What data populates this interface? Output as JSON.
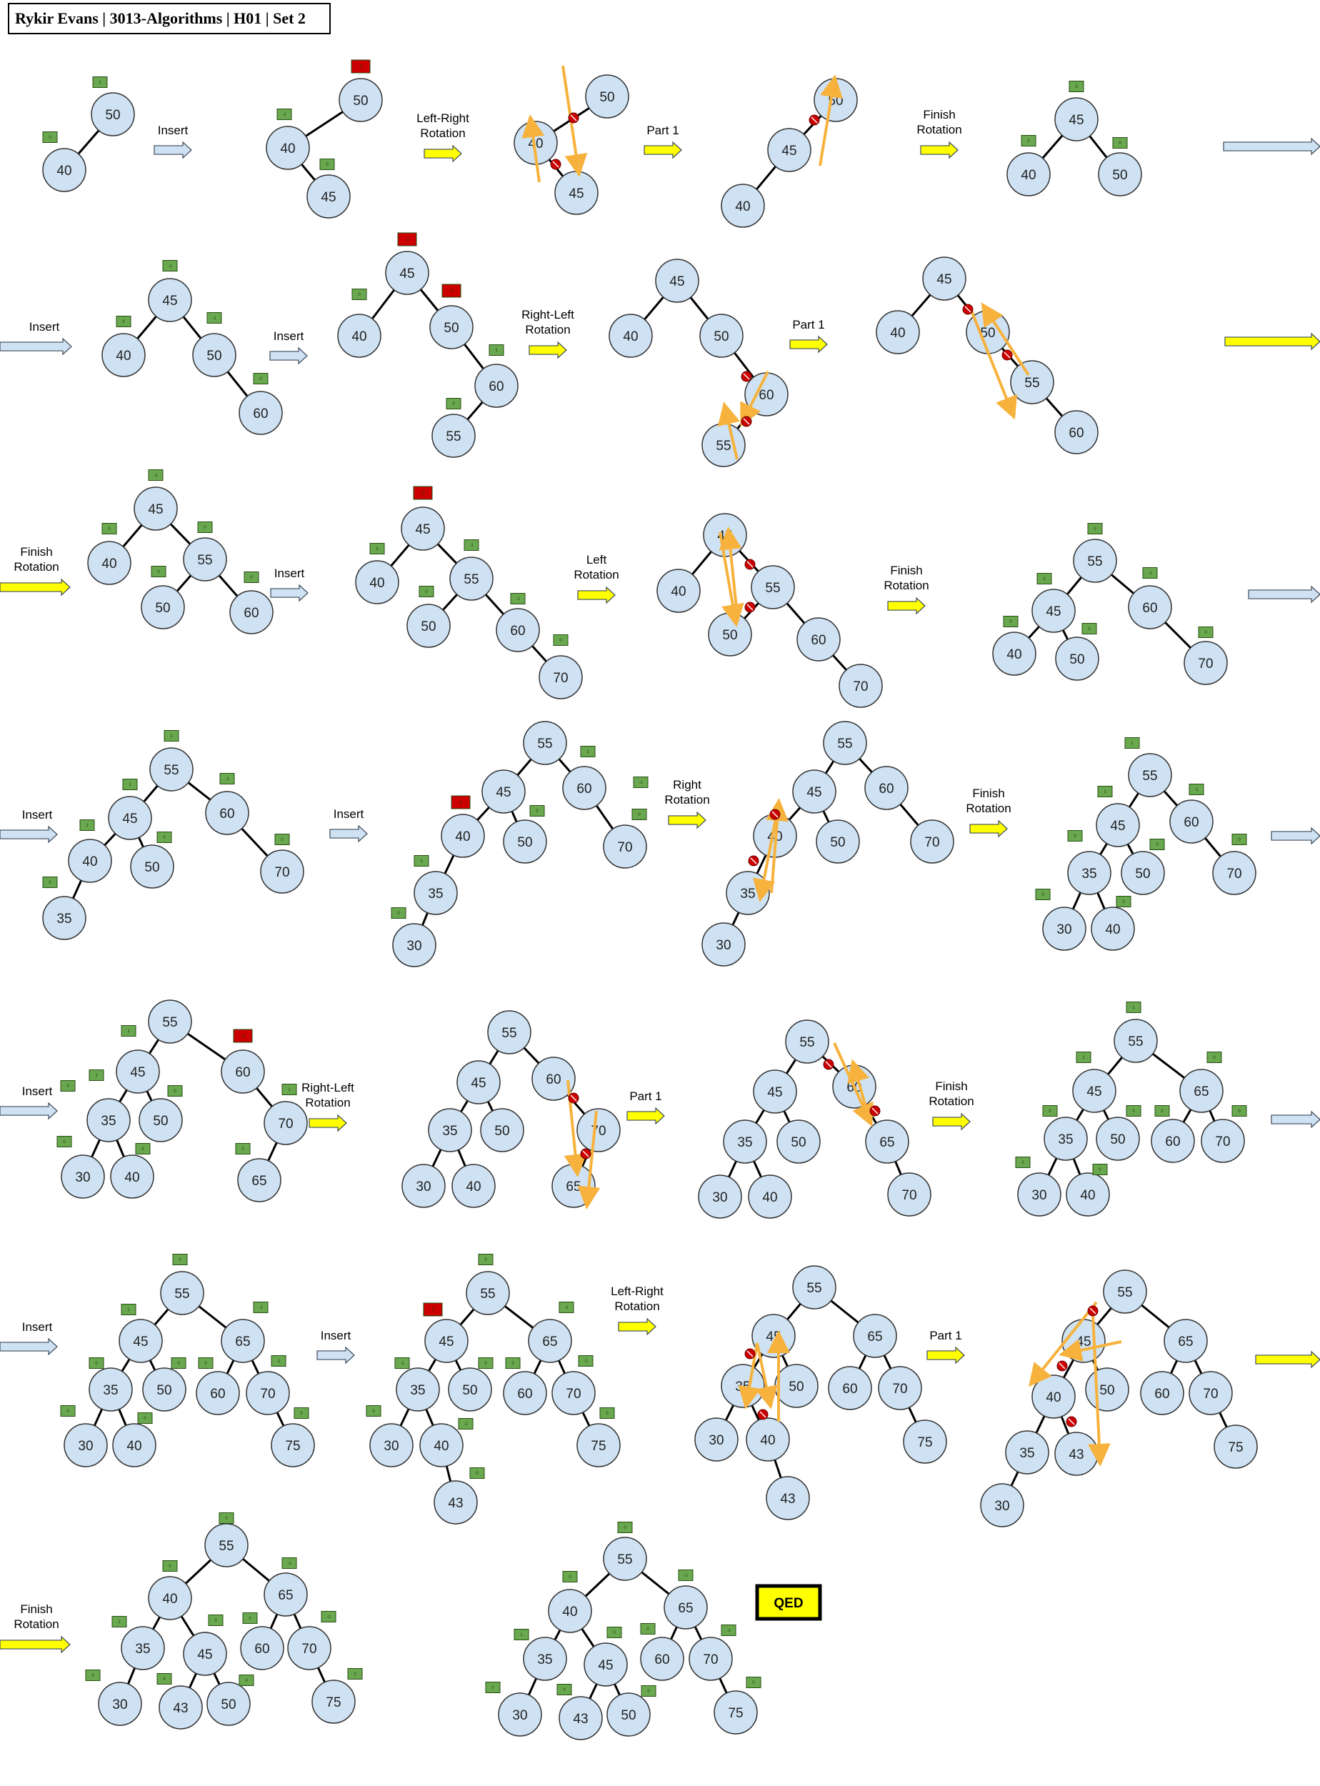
{
  "header": {
    "title": "Rykir Evans | 3013-Algorithms | H01 | Set 2"
  },
  "colors": {
    "node_fill": "#cfe2f3",
    "node_stroke": "#333333",
    "balance_ok": "#6aa84f",
    "balance_bad": "#cc0000",
    "arrow_yellow": "#ffff00",
    "arrow_blue": "#cfe2f3",
    "rotation_arrow": "#f6b23c"
  },
  "labels": {
    "insert": "Insert",
    "left_right_rotation": "Left-Right Rotation",
    "right_left_rotation": "Right-Left Rotation",
    "left_rotation": "Left Rotation",
    "right_rotation": "Right Rotation",
    "part1": "Part 1",
    "finish_rotation": "Finish Rotation",
    "qed": "QED"
  },
  "balance_values": [
    "1",
    "0",
    "-1",
    "-2",
    "2"
  ],
  "rows": [
    {
      "name": "row1",
      "trees": [
        {
          "name": "tree-50-40",
          "nodes": [
            [
              "50",
              0,
              "1"
            ],
            [
              "40",
              0,
              "0"
            ]
          ]
        },
        {
          "name": "tree-insert-45",
          "nodes": [
            [
              "50",
              0,
              "2"
            ],
            [
              "40",
              0,
              "-1"
            ],
            [
              "45",
              0,
              "0"
            ]
          ]
        },
        {
          "name": "tree-lr-rotation",
          "nodes": [
            [
              "50",
              0,
              ""
            ],
            [
              "40",
              0,
              ""
            ],
            [
              "45",
              0,
              ""
            ]
          ]
        },
        {
          "name": "tree-lr-part1",
          "nodes": [
            [
              "50",
              0,
              ""
            ],
            [
              "45",
              0,
              ""
            ],
            [
              "40",
              0,
              ""
            ]
          ]
        },
        {
          "name": "tree-lr-finished",
          "nodes": [
            [
              "45",
              0,
              "0"
            ],
            [
              "40",
              0,
              "0"
            ],
            [
              "50",
              0,
              "0"
            ]
          ]
        }
      ]
    },
    {
      "name": "row2",
      "trees": [
        {
          "name": "tree-insert-60",
          "nodes": [
            [
              "45",
              0,
              "-1"
            ],
            [
              "40",
              0,
              "0"
            ],
            [
              "50",
              0,
              "-1"
            ],
            [
              "60",
              0,
              "0"
            ]
          ]
        },
        {
          "name": "tree-insert-55",
          "nodes": [
            [
              "45",
              0,
              "-2"
            ],
            [
              "40",
              0,
              "0"
            ],
            [
              "50",
              0,
              "-2"
            ],
            [
              "60",
              0,
              "1"
            ],
            [
              "55",
              0,
              "0"
            ]
          ]
        },
        {
          "name": "tree-rl-rotation",
          "nodes": [
            [
              "45",
              0,
              ""
            ],
            [
              "40",
              0,
              ""
            ],
            [
              "50",
              0,
              ""
            ],
            [
              "60",
              0,
              ""
            ],
            [
              "55",
              0,
              ""
            ]
          ]
        },
        {
          "name": "tree-rl-part1",
          "nodes": [
            [
              "45",
              0,
              ""
            ],
            [
              "40",
              0,
              ""
            ],
            [
              "50",
              0,
              ""
            ],
            [
              "55",
              0,
              ""
            ],
            [
              "60",
              0,
              ""
            ]
          ]
        }
      ]
    },
    {
      "name": "row3",
      "trees": [
        {
          "name": "tree-rl-finished",
          "nodes": [
            [
              "45",
              0,
              "-1"
            ],
            [
              "40",
              0,
              "0"
            ],
            [
              "55",
              0,
              "0"
            ],
            [
              "50",
              0,
              "0"
            ],
            [
              "60",
              0,
              "0"
            ]
          ]
        },
        {
          "name": "tree-insert-70",
          "nodes": [
            [
              "45",
              0,
              "-2"
            ],
            [
              "40",
              0,
              "0"
            ],
            [
              "55",
              0,
              "-1"
            ],
            [
              "50",
              0,
              "0"
            ],
            [
              "60",
              0,
              "-1"
            ],
            [
              "70",
              0,
              "0"
            ]
          ]
        },
        {
          "name": "tree-left-rotation",
          "nodes": [
            [
              "45",
              0,
              ""
            ],
            [
              "40",
              0,
              ""
            ],
            [
              "55",
              0,
              ""
            ],
            [
              "50",
              0,
              ""
            ],
            [
              "60",
              0,
              ""
            ],
            [
              "70",
              0,
              ""
            ]
          ]
        },
        {
          "name": "tree-left-finished",
          "nodes": [
            [
              "55",
              0,
              "0"
            ],
            [
              "45",
              0,
              "0"
            ],
            [
              "60",
              0,
              "-1"
            ],
            [
              "40",
              0,
              "0"
            ],
            [
              "50",
              0,
              "0"
            ],
            [
              "70",
              0,
              "0"
            ]
          ]
        }
      ]
    },
    {
      "name": "row4",
      "trees": [
        {
          "name": "tree-insert-35",
          "nodes": [
            [
              "55",
              0,
              "1"
            ],
            [
              "45",
              0,
              "1"
            ],
            [
              "60",
              0,
              "-1"
            ],
            [
              "40",
              0,
              "1"
            ],
            [
              "50",
              0,
              "0"
            ],
            [
              "70",
              0,
              "0"
            ],
            [
              "35",
              0,
              "0"
            ]
          ]
        },
        {
          "name": "tree-insert-30",
          "nodes": [
            [
              "55",
              0,
              "1"
            ],
            [
              "45",
              0,
              "2"
            ],
            [
              "60",
              0,
              "-1"
            ],
            [
              "40",
              0,
              "2"
            ],
            [
              "50",
              0,
              "0"
            ],
            [
              "70",
              0,
              "0"
            ],
            [
              "35",
              0,
              "1"
            ],
            [
              "30",
              0,
              "0"
            ]
          ]
        },
        {
          "name": "tree-right-rotation",
          "nodes": [
            [
              "55",
              0,
              ""
            ],
            [
              "45",
              0,
              ""
            ],
            [
              "60",
              0,
              ""
            ],
            [
              "40",
              0,
              ""
            ],
            [
              "50",
              0,
              ""
            ],
            [
              "70",
              0,
              ""
            ],
            [
              "35",
              0,
              ""
            ],
            [
              "30",
              0,
              ""
            ]
          ]
        },
        {
          "name": "tree-right-finished",
          "nodes": [
            [
              "55",
              0,
              "1"
            ],
            [
              "45",
              0,
              "1"
            ],
            [
              "60",
              0,
              "-1"
            ],
            [
              "35",
              0,
              "0"
            ],
            [
              "50",
              0,
              "0"
            ],
            [
              "70",
              0,
              "0"
            ],
            [
              "30",
              0,
              "0"
            ],
            [
              "40",
              0,
              "0"
            ]
          ]
        }
      ]
    },
    {
      "name": "row5",
      "trees": [
        {
          "name": "tree-insert-65",
          "nodes": [
            [
              "55",
              0,
              "1"
            ],
            [
              "45",
              0,
              "1"
            ],
            [
              "60",
              0,
              "-2"
            ],
            [
              "35",
              0,
              "0"
            ],
            [
              "50",
              0,
              "0"
            ],
            [
              "70",
              0,
              "1"
            ],
            [
              "30",
              0,
              "0"
            ],
            [
              "40",
              0,
              "0"
            ],
            [
              "65",
              0,
              "0"
            ]
          ]
        },
        {
          "name": "tree-rl2-rotation",
          "nodes": [
            [
              "55",
              0,
              ""
            ],
            [
              "45",
              0,
              ""
            ],
            [
              "60",
              0,
              ""
            ],
            [
              "35",
              0,
              ""
            ],
            [
              "50",
              0,
              ""
            ],
            [
              "70",
              0,
              ""
            ],
            [
              "30",
              0,
              ""
            ],
            [
              "40",
              0,
              ""
            ],
            [
              "65",
              0,
              ""
            ]
          ]
        },
        {
          "name": "tree-rl2-part1",
          "nodes": [
            [
              "55",
              0,
              ""
            ],
            [
              "45",
              0,
              ""
            ],
            [
              "60",
              0,
              ""
            ],
            [
              "35",
              0,
              ""
            ],
            [
              "50",
              0,
              ""
            ],
            [
              "65",
              0,
              ""
            ],
            [
              "30",
              0,
              ""
            ],
            [
              "40",
              0,
              ""
            ],
            [
              "70",
              0,
              ""
            ]
          ]
        },
        {
          "name": "tree-rl2-finished",
          "nodes": [
            [
              "55",
              0,
              "1"
            ],
            [
              "45",
              0,
              "1"
            ],
            [
              "65",
              0,
              "0"
            ],
            [
              "35",
              0,
              "0"
            ],
            [
              "50",
              0,
              "0"
            ],
            [
              "60",
              0,
              "0"
            ],
            [
              "70",
              0,
              "0"
            ],
            [
              "30",
              0,
              "0"
            ],
            [
              "40",
              0,
              "0"
            ]
          ]
        }
      ]
    },
    {
      "name": "row6",
      "trees": [
        {
          "name": "tree-insert-75",
          "nodes": [
            [
              "55",
              0,
              "0"
            ],
            [
              "45",
              0,
              "1"
            ],
            [
              "65",
              0,
              "-1"
            ],
            [
              "35",
              0,
              "0"
            ],
            [
              "50",
              0,
              "0"
            ],
            [
              "60",
              0,
              "0"
            ],
            [
              "70",
              0,
              "-1"
            ],
            [
              "30",
              0,
              "0"
            ],
            [
              "40",
              0,
              "0"
            ],
            [
              "75",
              0,
              "0"
            ]
          ]
        },
        {
          "name": "tree-insert-43",
          "nodes": [
            [
              "55",
              0,
              "0"
            ],
            [
              "45",
              0,
              "2"
            ],
            [
              "65",
              0,
              "-1"
            ],
            [
              "35",
              0,
              "-1"
            ],
            [
              "50",
              0,
              "0"
            ],
            [
              "60",
              0,
              "0"
            ],
            [
              "70",
              0,
              "-1"
            ],
            [
              "30",
              0,
              "0"
            ],
            [
              "40",
              0,
              "-1"
            ],
            [
              "75",
              0,
              "0"
            ],
            [
              "43",
              0,
              "0"
            ]
          ]
        },
        {
          "name": "tree-lr2-rotation",
          "nodes": [
            [
              "55",
              0,
              ""
            ],
            [
              "45",
              0,
              ""
            ],
            [
              "65",
              0,
              ""
            ],
            [
              "35",
              0,
              ""
            ],
            [
              "50",
              0,
              ""
            ],
            [
              "60",
              0,
              ""
            ],
            [
              "70",
              0,
              ""
            ],
            [
              "30",
              0,
              ""
            ],
            [
              "40",
              0,
              ""
            ],
            [
              "75",
              0,
              ""
            ],
            [
              "43",
              0,
              ""
            ]
          ]
        },
        {
          "name": "tree-lr2-part1",
          "nodes": [
            [
              "55",
              0,
              ""
            ],
            [
              "45",
              0,
              ""
            ],
            [
              "65",
              0,
              ""
            ],
            [
              "40",
              0,
              ""
            ],
            [
              "50",
              0,
              ""
            ],
            [
              "60",
              0,
              ""
            ],
            [
              "70",
              0,
              ""
            ],
            [
              "35",
              0,
              ""
            ],
            [
              "43",
              0,
              ""
            ],
            [
              "75",
              0,
              ""
            ],
            [
              "30",
              0,
              ""
            ]
          ]
        }
      ]
    },
    {
      "name": "row7",
      "trees": [
        {
          "name": "tree-lr2-finished",
          "nodes": [
            [
              "55",
              0,
              "0"
            ],
            [
              "40",
              0,
              "0"
            ],
            [
              "65",
              0,
              "-1"
            ],
            [
              "35",
              0,
              "1"
            ],
            [
              "45",
              0,
              "0"
            ],
            [
              "60",
              0,
              "0"
            ],
            [
              "70",
              0,
              "-1"
            ],
            [
              "30",
              0,
              "0"
            ],
            [
              "43",
              0,
              "0"
            ],
            [
              "50",
              0,
              "0"
            ],
            [
              "75",
              0,
              "0"
            ]
          ]
        },
        {
          "name": "tree-final",
          "nodes": [
            [
              "55",
              0,
              "0"
            ],
            [
              "40",
              0,
              "0"
            ],
            [
              "65",
              0,
              "-1"
            ],
            [
              "35",
              0,
              "1"
            ],
            [
              "45",
              0,
              "0"
            ],
            [
              "60",
              0,
              "0"
            ],
            [
              "70",
              0,
              "-1"
            ],
            [
              "30",
              0,
              "0"
            ],
            [
              "43",
              0,
              "0"
            ],
            [
              "50",
              0,
              "0"
            ],
            [
              "75",
              0,
              "0"
            ]
          ]
        }
      ]
    }
  ]
}
